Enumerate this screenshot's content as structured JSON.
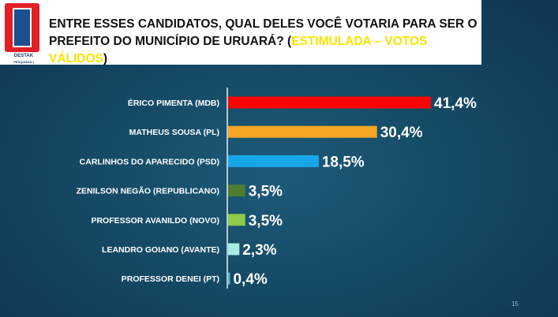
{
  "logo": {
    "name": "DESTAK",
    "tagline": "PESQUISAS | PUBLICIDADE"
  },
  "question": {
    "main": "ENTRE ESSES CANDIDATOS, QUAL DELES VOCÊ VOTARIA PARA SER O PREFEITO DO MUNICÍPIO DE URUARÁ? (",
    "highlight": "ESTIMULADA – VOTOS VÁLIDOS",
    "end": ")"
  },
  "page_number": "15",
  "chart_data": {
    "type": "bar",
    "orientation": "horizontal",
    "categories": [
      "ÉRICO PIMENTA (MDB)",
      "MATHEUS SOUSA (PL)",
      "CARLINHOS DO APARECIDO (PSD)",
      "ZENILSON NEGÃO (REPUBLICANO)",
      "PROFESSOR AVANILDO (NOVO)",
      "LEANDRO GOIANO (AVANTE)",
      "PROFESSOR DENEI (PT)"
    ],
    "values": [
      41.4,
      30.4,
      18.5,
      3.5,
      3.5,
      2.3,
      0.4
    ],
    "value_labels": [
      "41,4%",
      "30,4%",
      "18,5%",
      "3,5%",
      "3,5%",
      "2,3%",
      "0,4%"
    ],
    "colors": [
      "#ff0000",
      "#f5a623",
      "#16a7e9",
      "#4e7d32",
      "#8fca4a",
      "#a5ebe3",
      "#5ab7c7"
    ],
    "xlim": [
      0,
      41.4
    ],
    "grid": false,
    "legend": "none"
  }
}
